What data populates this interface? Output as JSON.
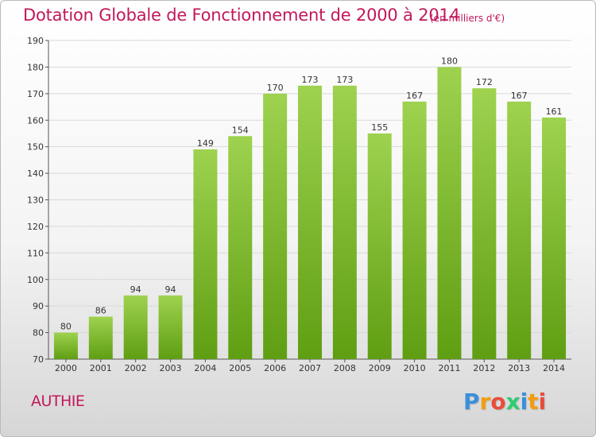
{
  "header": {
    "title": "Dotation Globale de Fonctionnement de 2000 à 2014",
    "unit_note": "(en milliers d'€)"
  },
  "footer": {
    "commune": "AUTHIE",
    "logo_text": "Proxiti",
    "logo_letters": [
      {
        "ch": "P",
        "color": "#3b8fd9"
      },
      {
        "ch": "r",
        "color": "#f39c12"
      },
      {
        "ch": "o",
        "color": "#e74c3c"
      },
      {
        "ch": "x",
        "color": "#2ecc71"
      },
      {
        "ch": "i",
        "color": "#3b8fd9"
      },
      {
        "ch": "t",
        "color": "#f39c12"
      },
      {
        "ch": "i",
        "color": "#e74c3c"
      }
    ]
  },
  "colors": {
    "bar_top": "#9ed24f",
    "bar_bottom": "#5f9e12",
    "accent": "#c2185b",
    "grid": "#d9d9d9"
  },
  "chart_data": {
    "type": "bar",
    "title": "Dotation Globale de Fonctionnement de 2000 à 2014",
    "subtitle": "(en milliers d'€)",
    "xlabel": "",
    "ylabel": "",
    "categories": [
      "2000",
      "2001",
      "2002",
      "2003",
      "2004",
      "2005",
      "2006",
      "2007",
      "2008",
      "2009",
      "2010",
      "2011",
      "2012",
      "2013",
      "2014"
    ],
    "values": [
      80,
      86,
      94,
      94,
      149,
      154,
      170,
      173,
      173,
      155,
      167,
      180,
      172,
      167,
      161
    ],
    "ylim": [
      70,
      190
    ],
    "yticks": [
      70,
      80,
      90,
      100,
      110,
      120,
      130,
      140,
      150,
      160,
      170,
      180,
      190
    ],
    "grid": true,
    "legend": "none"
  }
}
